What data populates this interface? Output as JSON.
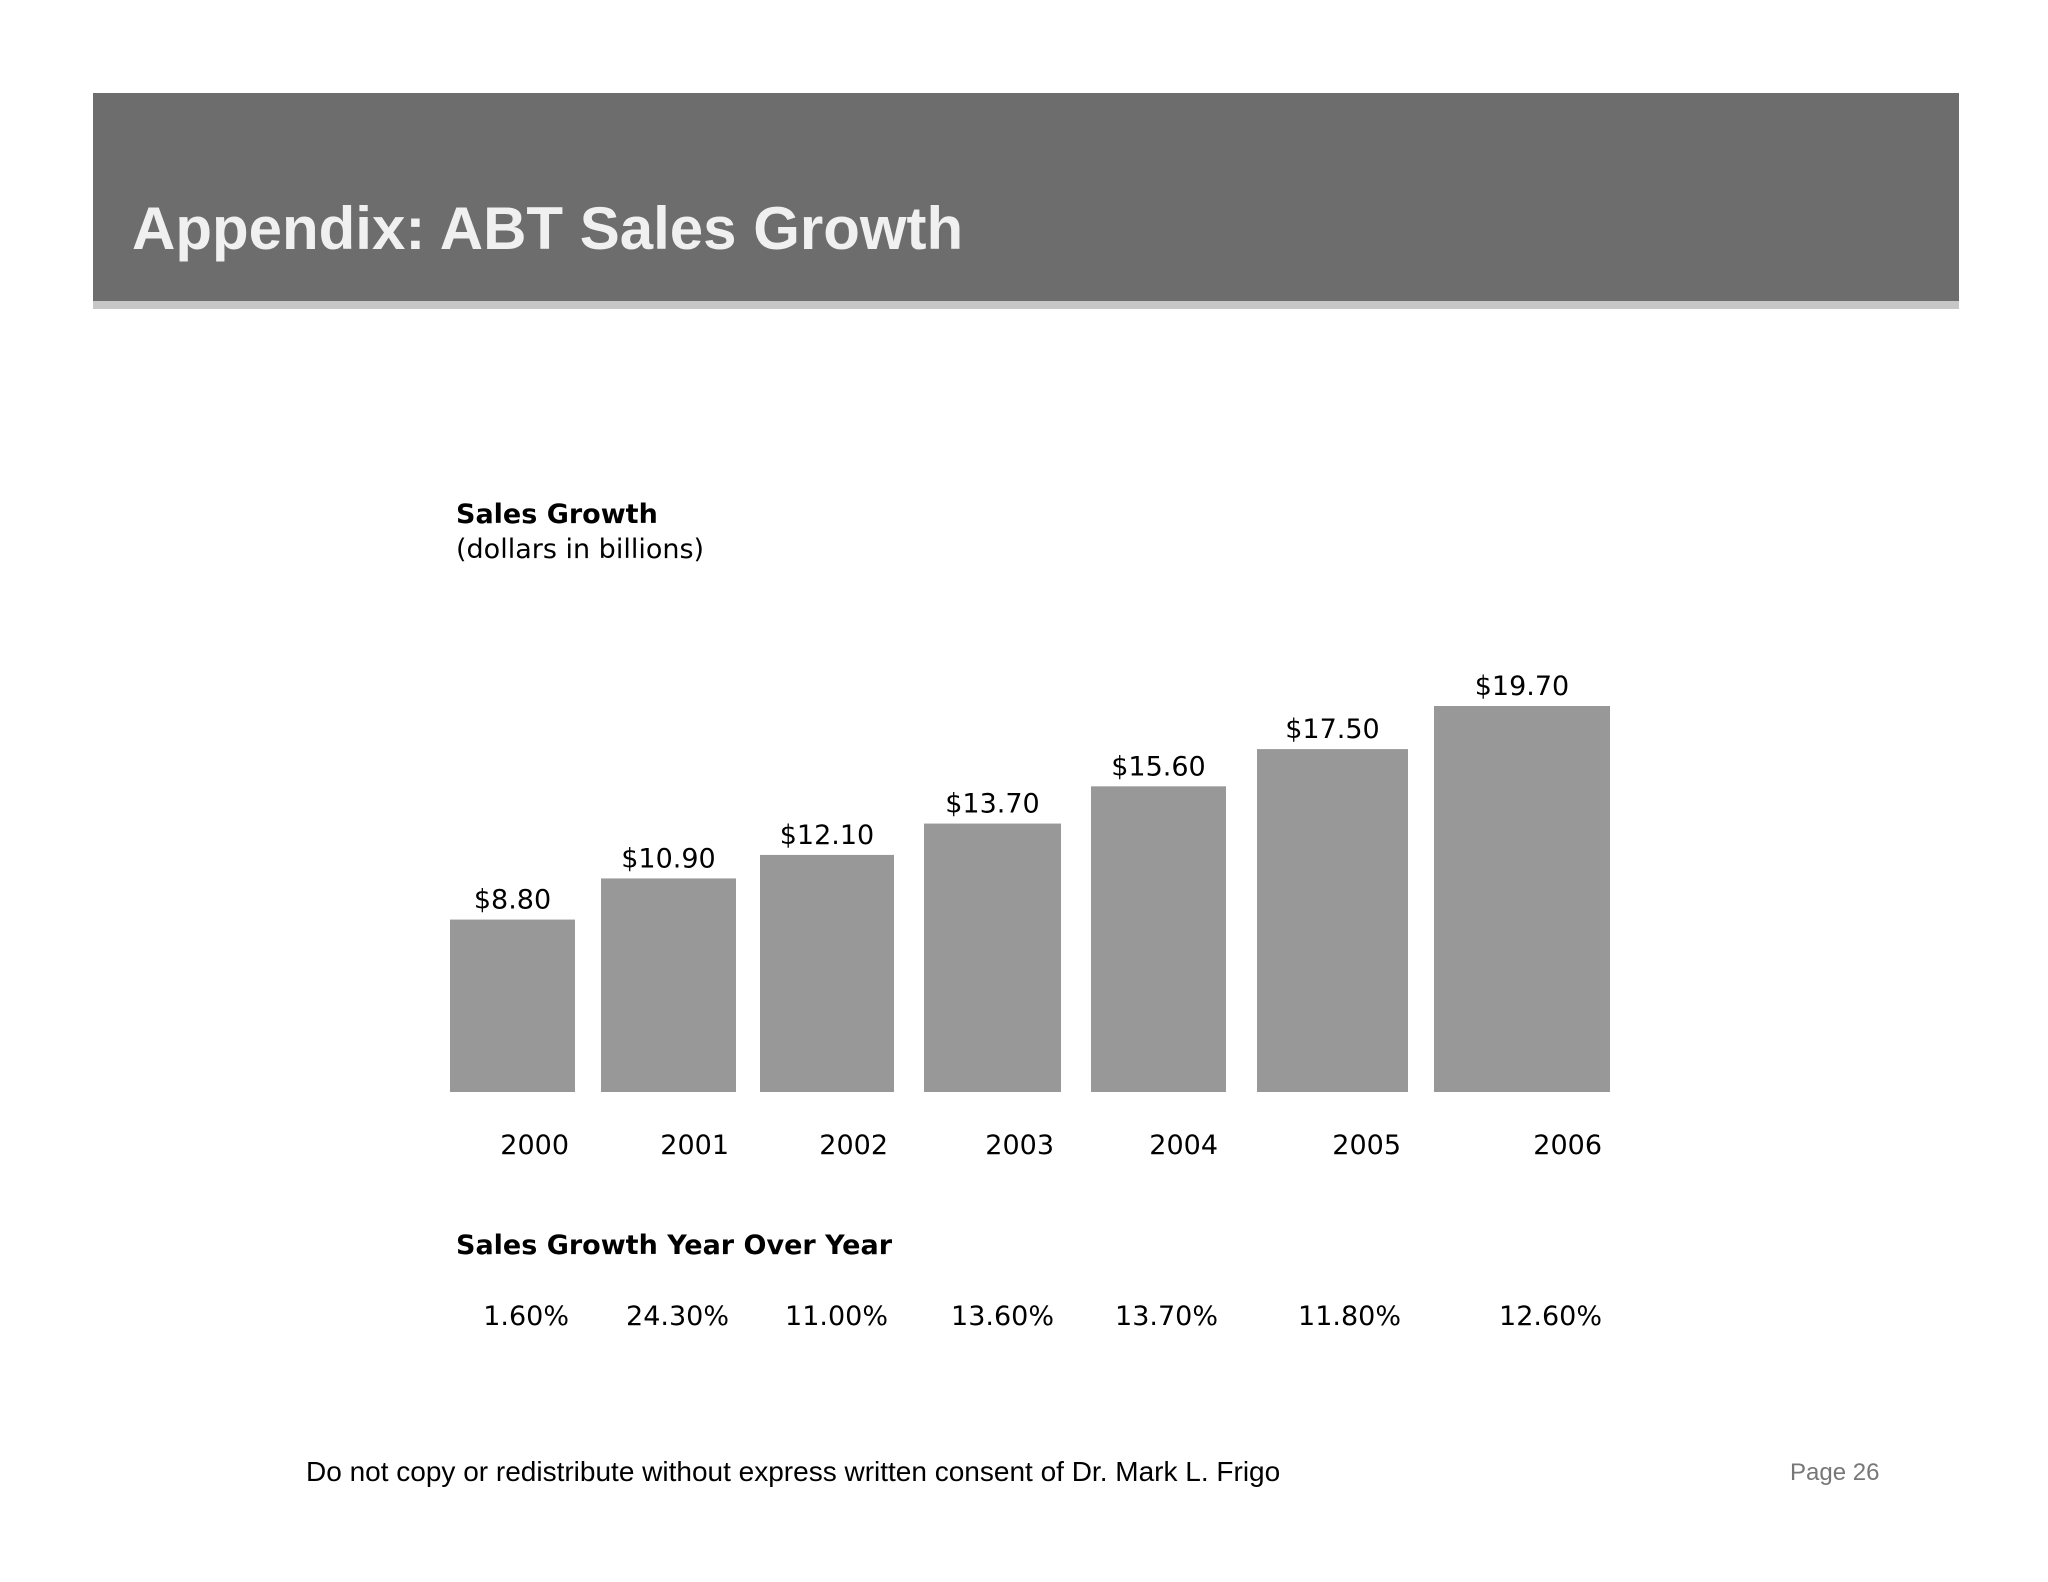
{
  "slide": {
    "title": "Appendix:  ABT Sales Growth",
    "footer": "Do not copy or redistribute without express written consent of Dr. Mark L. Frigo",
    "page_label": "Page  26"
  },
  "chart_data": {
    "type": "bar",
    "title": "Sales Growth",
    "subtitle": "(dollars in billions)",
    "categories": [
      "2000",
      "2001",
      "2002",
      "2003",
      "2004",
      "2005",
      "2006"
    ],
    "values": [
      8.8,
      10.9,
      12.1,
      13.7,
      15.6,
      17.5,
      19.7
    ],
    "value_labels": [
      "$8.80",
      "$10.90",
      "$12.10",
      "$13.70",
      "$15.60",
      "$17.50",
      "$19.70"
    ],
    "xlabel": "",
    "ylabel": "",
    "ylim": [
      0,
      19.7
    ],
    "grid": false,
    "legend": "none",
    "bar_color": "#989898"
  },
  "yoy": {
    "title": "Sales Growth Year Over Year",
    "values": [
      "1.60%",
      "24.30%",
      "11.00%",
      "13.60%",
      "13.70%",
      "11.80%",
      "12.60%"
    ]
  }
}
